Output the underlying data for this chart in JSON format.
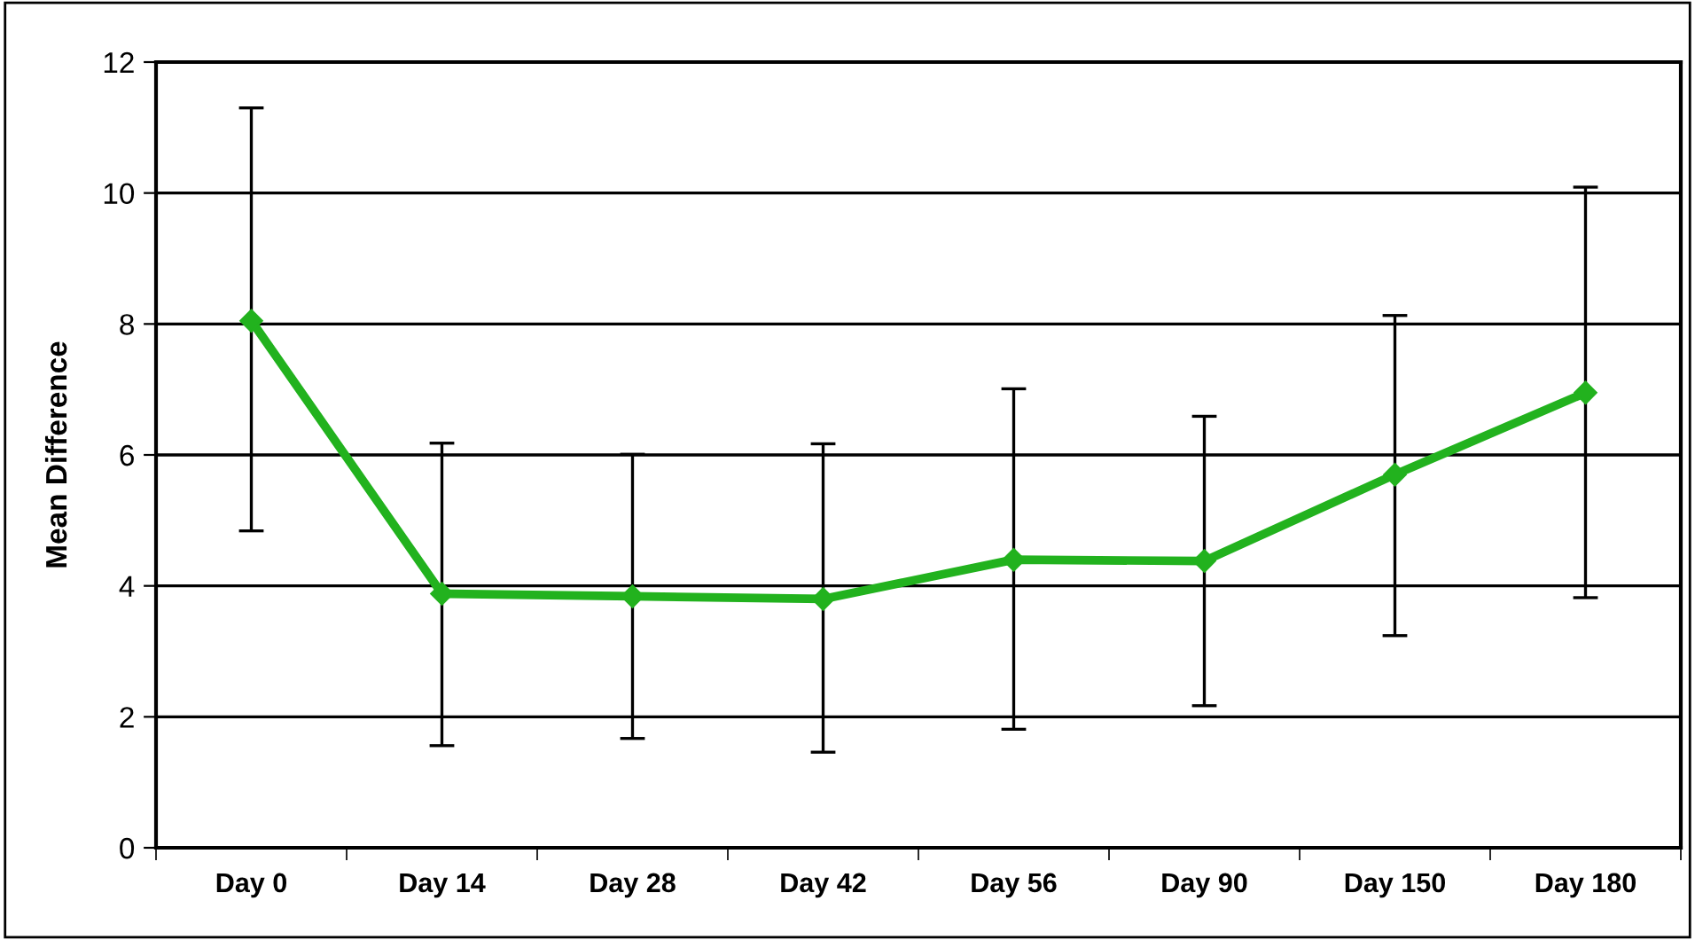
{
  "chart_data": {
    "type": "line",
    "ylabel": "Mean Difference",
    "categories": [
      "Day 0",
      "Day 14",
      "Day 28",
      "Day 42",
      "Day 56",
      "Day 90",
      "Day 150",
      "Day 180"
    ],
    "series": [
      {
        "color": "#22b21e",
        "values": [
          8.05,
          3.88,
          3.84,
          3.8,
          4.4,
          4.38,
          5.7,
          6.95
        ],
        "errors": [
          [
            4.84,
            11.3
          ],
          [
            1.56,
            6.18
          ],
          [
            1.67,
            6.01
          ],
          [
            1.46,
            6.17
          ],
          [
            1.81,
            7.01
          ],
          [
            2.17,
            6.59
          ],
          [
            3.24,
            8.13
          ],
          [
            3.82,
            10.09
          ]
        ]
      }
    ],
    "ylim": [
      0,
      12
    ],
    "yticks": [
      0,
      2,
      4,
      6,
      8,
      10,
      12
    ],
    "grid": "y",
    "marker": "diamond",
    "line_style": "solid"
  }
}
